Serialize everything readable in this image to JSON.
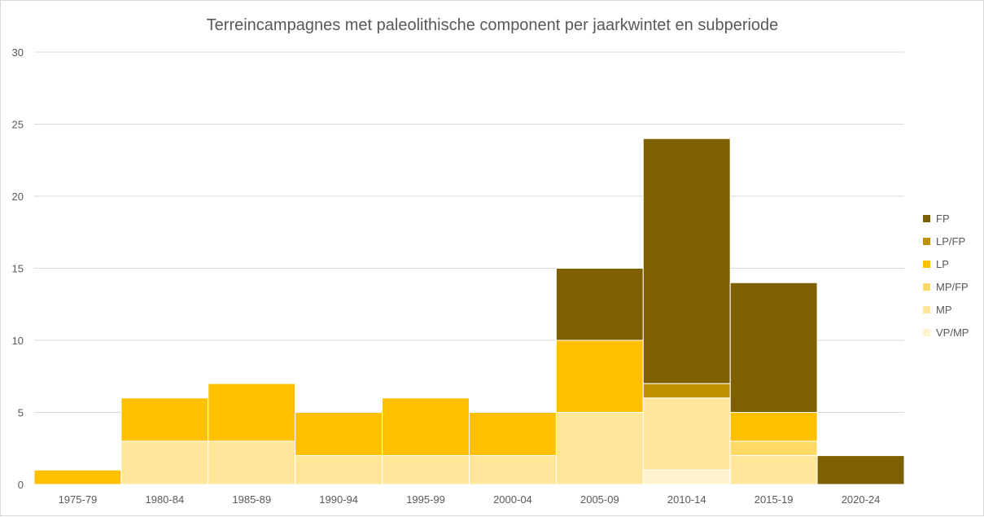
{
  "chart_data": {
    "type": "bar",
    "stacked": true,
    "title": "Terreincampagnes met paleolithische component per jaarkwintet en subperiode",
    "xlabel": "",
    "ylabel": "",
    "ylim": [
      0,
      30
    ],
    "yticks": [
      0,
      5,
      10,
      15,
      20,
      25,
      30
    ],
    "grid": true,
    "legend_position": "right",
    "categories": [
      "1975-79",
      "1980-84",
      "1985-89",
      "1990-94",
      "1995-99",
      "2000-04",
      "2005-09",
      "2010-14",
      "2015-19",
      "2020-24"
    ],
    "series": [
      {
        "name": "VP/MP",
        "color": "#FFF2CC",
        "values": [
          0,
          0,
          0,
          0,
          0,
          0,
          0,
          1,
          0,
          0
        ]
      },
      {
        "name": "MP",
        "color": "#FFE699",
        "values": [
          0,
          3,
          3,
          2,
          2,
          2,
          5,
          5,
          2,
          0
        ]
      },
      {
        "name": "MP/FP",
        "color": "#FFD966",
        "values": [
          0,
          0,
          0,
          0,
          0,
          0,
          0,
          0,
          1,
          0
        ]
      },
      {
        "name": "LP",
        "color": "#FFC000",
        "values": [
          1,
          3,
          4,
          3,
          4,
          3,
          5,
          0,
          2,
          0
        ]
      },
      {
        "name": "LP/FP",
        "color": "#BF9000",
        "values": [
          0,
          0,
          0,
          0,
          0,
          0,
          0,
          1,
          0,
          0
        ]
      },
      {
        "name": "FP",
        "color": "#7F6000",
        "values": [
          0,
          0,
          0,
          0,
          0,
          0,
          5,
          17,
          9,
          2
        ]
      }
    ],
    "legend_order": [
      "FP",
      "LP/FP",
      "LP",
      "MP/FP",
      "MP",
      "VP/MP"
    ]
  }
}
